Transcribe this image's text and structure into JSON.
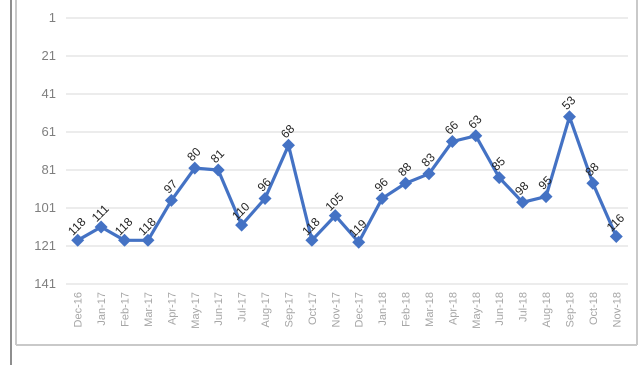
{
  "chart_data": {
    "type": "line",
    "title": "",
    "xlabel": "",
    "ylabel": "",
    "y_reversed": true,
    "ylim": [
      1,
      141
    ],
    "yticks": [
      "1",
      "21",
      "41",
      "61",
      "81",
      "101",
      "121",
      "141"
    ],
    "grid": true,
    "legend": "none",
    "line_color": "#4472c4",
    "marker": "diamond",
    "categories": [
      "Dec-16",
      "Jan-17",
      "Feb-17",
      "Mar-17",
      "Apr-17",
      "May-17",
      "Jun-17",
      "Jul-17",
      "Aug-17",
      "Sep-17",
      "Oct-17",
      "Nov-17",
      "Dec-17",
      "Jan-18",
      "Feb-18",
      "Mar-18",
      "Apr-18",
      "May-18",
      "Jun-18",
      "Jul-18",
      "Aug-18",
      "Sep-18",
      "Oct-18",
      "Nov-18"
    ],
    "values": [
      118,
      111,
      118,
      118,
      97,
      80,
      81,
      110,
      96,
      68,
      118,
      105,
      119,
      96,
      88,
      83,
      66,
      63,
      85,
      98,
      95,
      53,
      88,
      116
    ]
  }
}
